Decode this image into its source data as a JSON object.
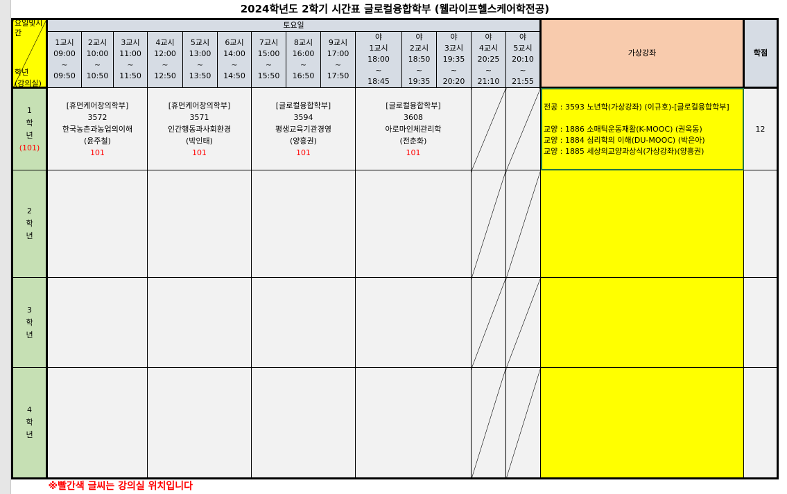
{
  "title": "2024학년도 2학기 시간표 글로컬융합학부 (웰라이프헬스케어학전공)",
  "corner": {
    "top": "요일및시간",
    "bottom": "학년\n(강의실)"
  },
  "day": "토요일",
  "periods": [
    "1교시\n09:00\n~\n09:50",
    "2교시\n10:00\n~\n10:50",
    "3교시\n11:00\n~\n11:50",
    "4교시\n12:00\n~\n12:50",
    "5교시\n13:00\n~\n13:50",
    "6교시\n14:00\n~\n14:50",
    "7교시\n15:00\n~\n15:50",
    "8교시\n16:00\n~\n16:50",
    "9교시\n17:00\n~\n17:50",
    "야\n1교시\n18:00\n~\n18:45",
    "야\n2교시\n18:50\n~\n19:35",
    "야\n3교시\n19:35\n~\n20:20",
    "야\n4교시\n20:25\n~\n21:10",
    "야\n5교시\n20:10\n~\n21:55"
  ],
  "virtual_header": "가상강좌",
  "credit_header": "학점",
  "grades": [
    {
      "num": "1",
      "hak": "학",
      "nyeon": "년",
      "room": "(101)",
      "courses": [
        {
          "dept": "[휴먼케어창의학부]",
          "code": "3572",
          "name": "한국농촌과농업의이해",
          "prof": "(윤주철)",
          "room": "101"
        },
        {
          "dept": "[휴먼케어창의학부]",
          "code": "3571",
          "name": "인간행동과사회환경",
          "prof": "(박인태)",
          "room": "101"
        },
        {
          "dept": "[글로컬융합학부]",
          "code": "3594",
          "name": "평생교육기관경영",
          "prof": "(양흥권)",
          "room": "101"
        },
        {
          "dept": "[글로컬융합학부]",
          "code": "3608",
          "name": "아로마인체관리학",
          "prof": "(전춘화)",
          "room": "101"
        }
      ],
      "virtual": [
        "전공 : 3593 노년학(가상강좌) (이규호)-[글로컬융합학부]",
        "",
        "교양 : 1886 소매틱운동재활(K-MOOC) (권옥동)",
        "교양 : 1884 심리학의 이해(DU-MOOC) (박은아)",
        "교양 : 1885 세상의교양과상식(가상강좌)(양흥권)"
      ],
      "credit": "12"
    },
    {
      "num": "2",
      "hak": "학",
      "nyeon": "년"
    },
    {
      "num": "3",
      "hak": "학",
      "nyeon": "년"
    },
    {
      "num": "4",
      "hak": "학",
      "nyeon": "년"
    }
  ],
  "footer_note": "※빨간색 글씨는 강의실 위치입니다",
  "colors": {
    "header_bg": "#d6dce4",
    "corner_bg": "#ffff00",
    "grade_bg": "#c6e0b4",
    "virtual_bg": "#ffff00",
    "virtual_header_bg": "#f8cbad",
    "room_text": "#ff0000"
  }
}
